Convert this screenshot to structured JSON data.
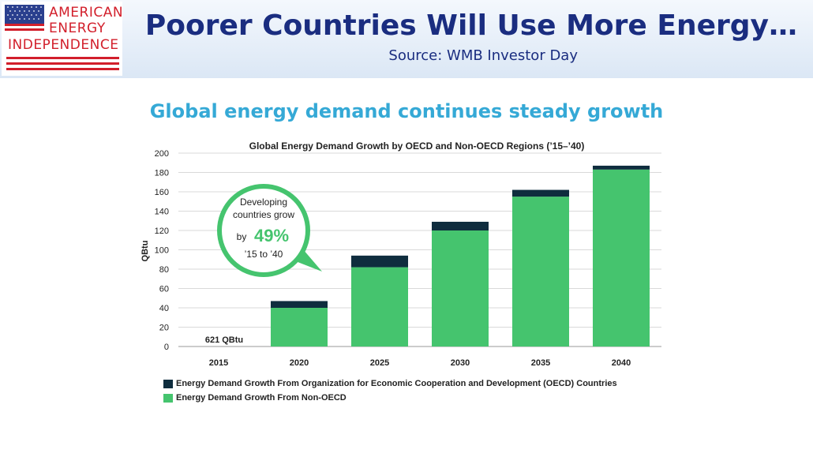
{
  "banner": {
    "logo": {
      "line1": "AMERICAN",
      "line2": "ENERGY",
      "line3": "INDEPENDENCE"
    },
    "title": "Poorer Countries Will Use More Energy…",
    "source": "Source: WMB Investor Day"
  },
  "headline": "Global energy demand continues steady growth",
  "colors": {
    "oecd": "#0f2d3e",
    "non_oecd": "#45c46e",
    "headline": "#35a9d6",
    "title": "#1a2d80",
    "logo_red": "#d21f2b"
  },
  "chart_data": {
    "type": "bar",
    "stacked": true,
    "title": "Global Energy Demand Growth by OECD and Non-OECD Regions (’15–’40)",
    "xlabel": "",
    "ylabel": "QBtu",
    "ylim": [
      0,
      200
    ],
    "yticks": [
      0,
      20,
      40,
      60,
      80,
      100,
      120,
      140,
      160,
      180,
      200
    ],
    "grid": true,
    "categories": [
      "2015",
      "2020",
      "2025",
      "2030",
      "2035",
      "2040"
    ],
    "series": [
      {
        "name": "Energy Demand Growth From Non-OECD",
        "key": "non_oecd",
        "values": [
          0,
          40,
          82,
          120,
          155,
          183
        ]
      },
      {
        "name": "Energy Demand Growth From Organization for Economic Cooperation and Development (OECD) Countries",
        "key": "oecd",
        "values": [
          0,
          7,
          12,
          9,
          7,
          4
        ]
      }
    ],
    "legend_order": [
      "oecd",
      "non_oecd"
    ],
    "legend_position": "bottom-left",
    "annotations": {
      "base_label": "621 QBtu",
      "callout": {
        "line1": "Developing",
        "line2": "countries grow",
        "by": "by",
        "pct": "49%",
        "period": "’15 to ’40"
      }
    }
  }
}
